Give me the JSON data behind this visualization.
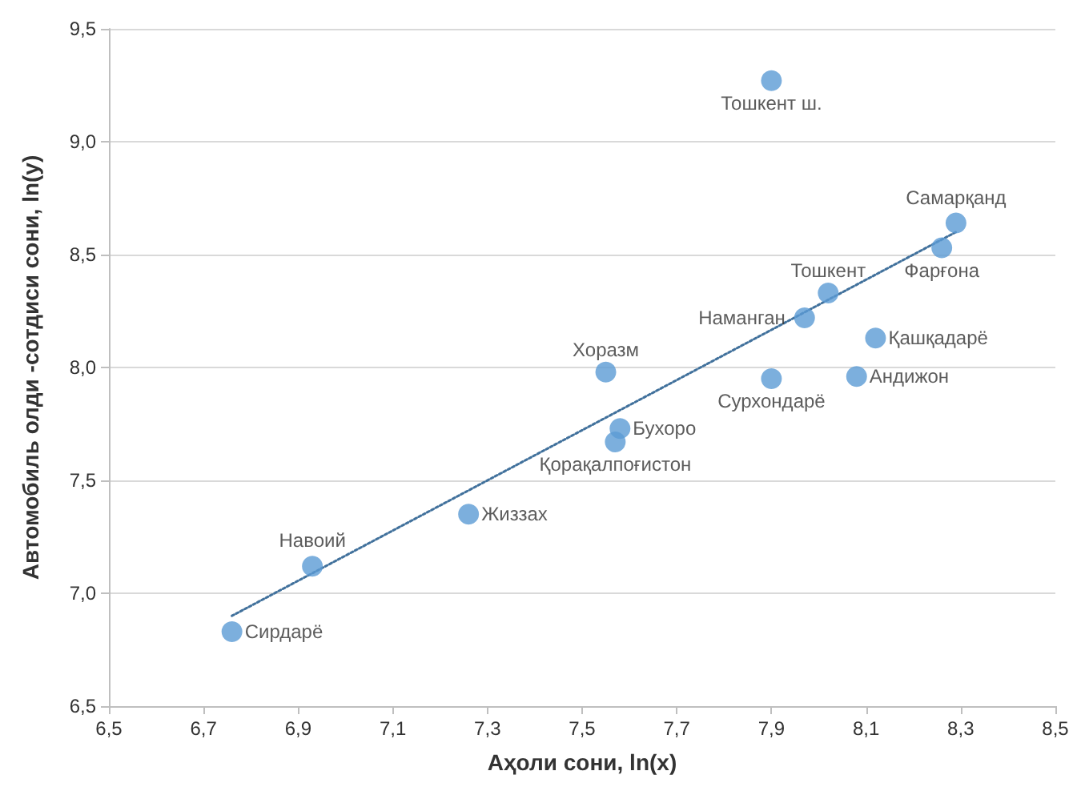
{
  "chart_data": {
    "type": "scatter",
    "xlabel": "Аҳоли сони, ln(x)",
    "ylabel": "Автомобиль олди -сотдиси сони, ln(y)",
    "series": [
      {
        "color": "#5b9bd5",
        "x": [
          7.9,
          8.29,
          8.26,
          8.02,
          7.97,
          8.12,
          7.55,
          7.9,
          8.08,
          7.58,
          7.57,
          7.26,
          6.93,
          6.76
        ],
        "values": [
          9.27,
          8.64,
          8.53,
          8.33,
          8.22,
          8.13,
          7.98,
          7.95,
          7.96,
          7.73,
          7.67,
          7.35,
          7.12,
          6.83
        ]
      },
      {
        "type": "line",
        "color": "#41719c",
        "line_style": "dotted",
        "marker": "none",
        "x": [
          6.76,
          8.29
        ],
        "values": [
          6.9,
          8.6
        ]
      }
    ],
    "annotations": [
      {
        "text": "Тошкент ш.",
        "x": 7.9,
        "y": 9.27
      },
      {
        "text": "Самарқанд",
        "x": 8.29,
        "y": 8.64
      },
      {
        "text": "Фарғона",
        "x": 8.26,
        "y": 8.53
      },
      {
        "text": "Тошкент",
        "x": 8.02,
        "y": 8.33
      },
      {
        "text": "Наманган",
        "x": 7.97,
        "y": 8.22
      },
      {
        "text": "Қашқадарё",
        "x": 8.12,
        "y": 8.13
      },
      {
        "text": "Хоразм",
        "x": 7.55,
        "y": 7.98
      },
      {
        "text": "Сурхондарё",
        "x": 7.9,
        "y": 7.95
      },
      {
        "text": "Андижон",
        "x": 8.08,
        "y": 7.96
      },
      {
        "text": "Бухоро",
        "x": 7.58,
        "y": 7.73
      },
      {
        "text": "Қорақалпоғистон",
        "x": 7.57,
        "y": 7.67
      },
      {
        "text": "Жиззах",
        "x": 7.26,
        "y": 7.35
      },
      {
        "text": "Навоий",
        "x": 6.93,
        "y": 7.12
      },
      {
        "text": "Сирдарё",
        "x": 6.76,
        "y": 6.83
      }
    ],
    "xlim": [
      6.5,
      8.5
    ],
    "xticks": [
      {
        "value": 6.5,
        "label": "6,5"
      },
      {
        "value": 6.7,
        "label": "6,7"
      },
      {
        "value": 6.9,
        "label": "6,9"
      },
      {
        "value": 7.1,
        "label": "7,1"
      },
      {
        "value": 7.3,
        "label": "7,3"
      },
      {
        "value": 7.5,
        "label": "7,5"
      },
      {
        "value": 7.7,
        "label": "7,7"
      },
      {
        "value": 7.9,
        "label": "7,9"
      },
      {
        "value": 8.1,
        "label": "8,1"
      },
      {
        "value": 8.3,
        "label": "8,3"
      },
      {
        "value": 8.5,
        "label": "8,5"
      }
    ],
    "ylim": [
      6.5,
      9.5
    ],
    "yticks": [
      {
        "value": 6.5,
        "label": "6,5"
      },
      {
        "value": 7.0,
        "label": "7,0"
      },
      {
        "value": 7.5,
        "label": "7,5"
      },
      {
        "value": 8.0,
        "label": "8,0"
      },
      {
        "value": 8.5,
        "label": "8,5"
      },
      {
        "value": 9.0,
        "label": "9,0"
      },
      {
        "value": 9.5,
        "label": "9,5"
      }
    ],
    "grid": "y",
    "marker": "circle"
  }
}
